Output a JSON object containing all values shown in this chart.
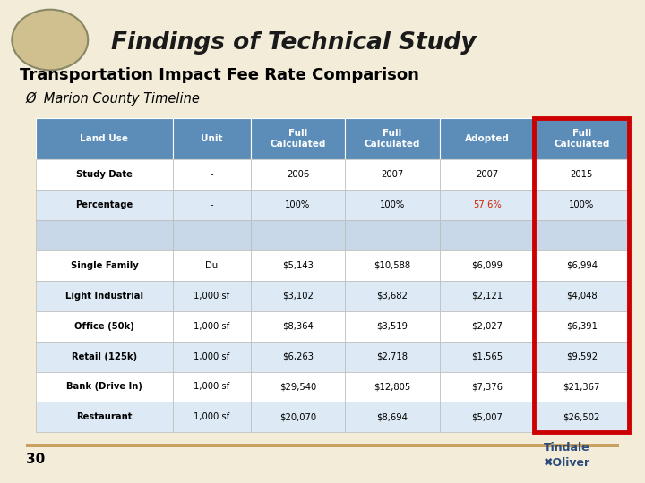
{
  "title_header": "Findings of Technical Study",
  "title_main": "Transportation Impact Fee Rate Comparison",
  "subtitle": "Ø  Marion County Timeline",
  "header_bg": "#F0A800",
  "header_bg_left": "#D4C8A0",
  "header_accent": "#87CEEB",
  "slide_bg": "#F2ECD8",
  "table_header_bg": "#5B8DB8",
  "table_row_odd": "#DDEAF5",
  "table_row_even": "#FFFFFF",
  "table_row_empty": "#C8D8E8",
  "last_col_border": "#CC0000",
  "percentage_red": "#CC2200",
  "footer_line_color": "#C8A060",
  "col_headers": [
    "Land Use",
    "Unit",
    "Full\nCalculated",
    "Full\nCalculated",
    "Adopted",
    "Full\nCalculated"
  ],
  "col_widths": [
    1.6,
    0.9,
    1.1,
    1.1,
    1.1,
    1.1
  ],
  "rows": [
    [
      "Study Date",
      "-",
      "2006",
      "2007",
      "2007",
      "2015"
    ],
    [
      "Percentage",
      "-",
      "100%",
      "100%",
      "57.6%",
      "100%"
    ],
    [
      "",
      "",
      "",
      "",
      "",
      ""
    ],
    [
      "Single Family",
      "Du",
      "$5,143",
      "$10,588",
      "$6,099",
      "$6,994"
    ],
    [
      "Light Industrial",
      "1,000 sf",
      "$3,102",
      "$3,682",
      "$2,121",
      "$4,048"
    ],
    [
      "Office (50k)",
      "1,000 sf",
      "$8,364",
      "$3,519",
      "$2,027",
      "$6,391"
    ],
    [
      "Retail (125k)",
      "1,000 sf",
      "$6,263",
      "$2,718",
      "$1,565",
      "$9,592"
    ],
    [
      "Bank (Drive In)",
      "1,000 sf",
      "$29,540",
      "$12,805",
      "$7,376",
      "$21,367"
    ],
    [
      "Restaurant",
      "1,000 sf",
      "$20,070",
      "$8,694",
      "$5,007",
      "$26,502"
    ]
  ],
  "row_colors": [
    "#FFFFFF",
    "#DDEAF5",
    "#C8D8E8",
    "#FFFFFF",
    "#DDEAF5",
    "#FFFFFF",
    "#DDEAF5",
    "#FFFFFF",
    "#DDEAF5"
  ],
  "page_number": "30"
}
